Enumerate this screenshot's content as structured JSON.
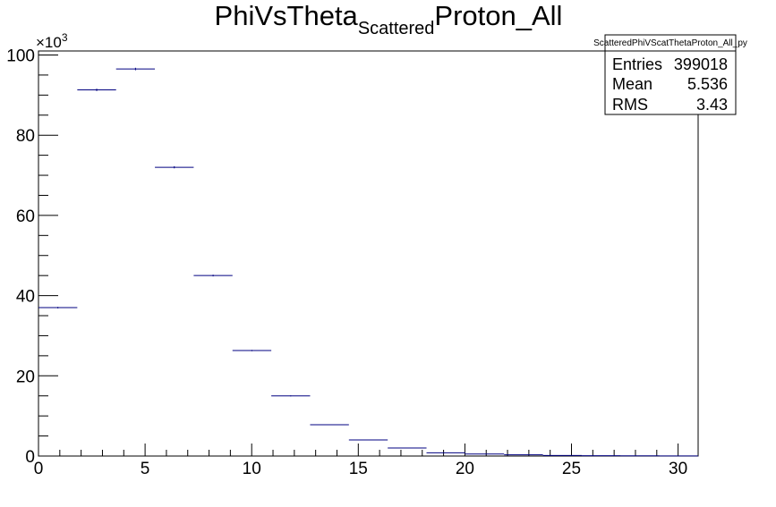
{
  "chart_data": {
    "type": "bar",
    "title_main": "PhiVsTheta",
    "title_sub": "Scattered",
    "title_tail": "Proton_All",
    "x_bin_edges": [
      0,
      1.82,
      3.64,
      5.46,
      7.28,
      9.1,
      10.92,
      12.74,
      14.56,
      16.38,
      18.2,
      20.02,
      21.84,
      23.66,
      25.48,
      27.3,
      29.12,
      30.94
    ],
    "values": [
      37000,
      91300,
      96500,
      72000,
      45000,
      26300,
      15000,
      7800,
      4000,
      2000,
      800,
      500,
      300,
      150,
      80,
      50,
      20
    ],
    "xlim": [
      0,
      30.94
    ],
    "ylim": [
      0,
      101000
    ],
    "x_ticks": [
      "0",
      "5",
      "10",
      "15",
      "20",
      "25",
      "30"
    ],
    "y_ticks": [
      "0",
      "20",
      "40",
      "60",
      "80",
      "100"
    ],
    "y_exponent_base": "×10",
    "y_exponent_power": "3",
    "grid": false,
    "line_color": "#000080"
  },
  "stats": {
    "name": "ScatteredPhiVScatThetaProton_All_py",
    "entries_label": "Entries",
    "entries_value": "399018",
    "mean_label": "Mean",
    "mean_value": "5.536",
    "rms_label": "RMS",
    "rms_value": "3.43"
  }
}
